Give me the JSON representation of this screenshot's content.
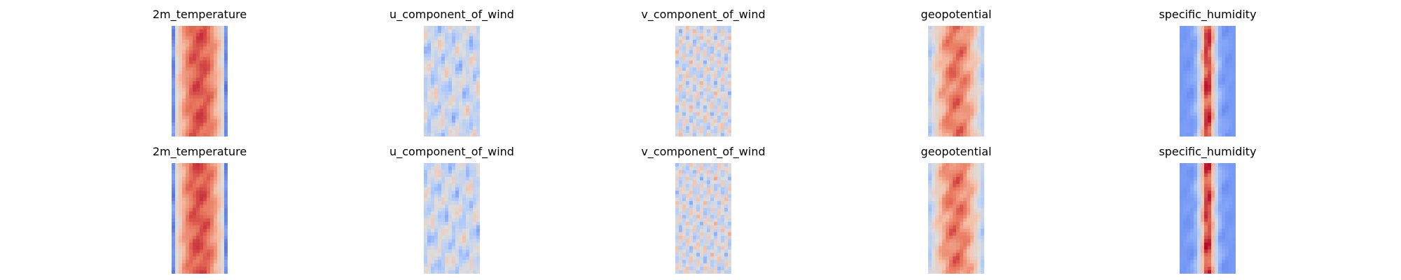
{
  "chart_data": {
    "type": "heatmap",
    "colormap": "coolwarm",
    "colormap_stops": [
      "#3b4cc0",
      "#7396f5",
      "#b0cbfc",
      "#dddddd",
      "#f6bfa6",
      "#e7745b",
      "#b40426"
    ],
    "axes_visible": false,
    "rows": [
      {
        "panels": [
          {
            "title": "2m_temperature",
            "pattern": "warm-band"
          },
          {
            "title": "u_component_of_wind",
            "pattern": "wind-u"
          },
          {
            "title": "v_component_of_wind",
            "pattern": "wind-v"
          },
          {
            "title": "geopotential",
            "pattern": "geopotential"
          },
          {
            "title": "specific_humidity",
            "pattern": "humidity"
          }
        ]
      },
      {
        "panels": [
          {
            "title": "2m_temperature",
            "pattern": "warm-band"
          },
          {
            "title": "u_component_of_wind",
            "pattern": "wind-u"
          },
          {
            "title": "v_component_of_wind",
            "pattern": "wind-v"
          },
          {
            "title": "geopotential",
            "pattern": "geopotential"
          },
          {
            "title": "specific_humidity",
            "pattern": "humidity"
          }
        ]
      }
    ]
  }
}
